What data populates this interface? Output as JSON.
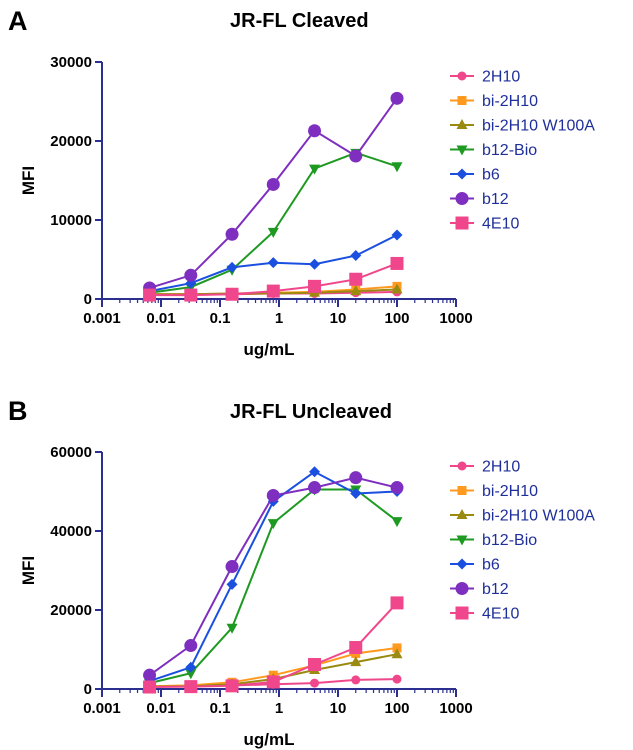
{
  "chart_data": [
    {
      "type": "line",
      "panel_label": "A",
      "title": "JR-FL Cleaved",
      "xlabel": "ug/mL",
      "ylabel": "MFI",
      "x_scale": "log",
      "xlim": [
        0.001,
        1000
      ],
      "ylim": [
        0,
        30000
      ],
      "x_ticks": [
        0.001,
        0.01,
        0.1,
        1,
        10,
        100,
        1000
      ],
      "x_tick_labels": [
        "0.001",
        "0.01",
        "0.1",
        "1",
        "10",
        "100",
        "1000"
      ],
      "y_ticks": [
        0,
        10000,
        20000,
        30000
      ],
      "y_tick_labels": [
        "0",
        "10000",
        "20000",
        "30000"
      ],
      "grid": false,
      "legend_position": "right",
      "x": [
        0.0064,
        0.032,
        0.16,
        0.8,
        4,
        20,
        100
      ],
      "series": [
        {
          "name": "2H10",
          "color": "#f0478c",
          "marker": "circle-small",
          "values": [
            600,
            600,
            600,
            700,
            700,
            800,
            900
          ]
        },
        {
          "name": "bi-2H10",
          "color": "#ff9a1f",
          "marker": "square-small",
          "values": [
            600,
            600,
            700,
            800,
            900,
            1200,
            1600
          ]
        },
        {
          "name": "bi-2H10 W100A",
          "color": "#9a8a10",
          "marker": "triangle-up",
          "values": [
            600,
            600,
            700,
            700,
            800,
            1000,
            1200
          ]
        },
        {
          "name": "b12-Bio",
          "color": "#1e9a22",
          "marker": "triangle-down",
          "values": [
            800,
            1500,
            3700,
            8500,
            16500,
            18500,
            16800
          ]
        },
        {
          "name": "b6",
          "color": "#1a4fe0",
          "marker": "diamond",
          "values": [
            1000,
            2000,
            4000,
            4600,
            4400,
            5500,
            8100
          ]
        },
        {
          "name": "b12",
          "color": "#7e2fbf",
          "marker": "circle-large",
          "values": [
            1400,
            3000,
            8200,
            14500,
            21300,
            18100,
            25400
          ]
        },
        {
          "name": "4E10",
          "color": "#f0478c",
          "marker": "square-large",
          "values": [
            500,
            500,
            600,
            1000,
            1600,
            2500,
            4500
          ]
        }
      ]
    },
    {
      "type": "line",
      "panel_label": "B",
      "title": "JR-FL Uncleaved",
      "xlabel": "ug/mL",
      "ylabel": "MFI",
      "x_scale": "log",
      "xlim": [
        0.001,
        1000
      ],
      "ylim": [
        0,
        60000
      ],
      "x_ticks": [
        0.001,
        0.01,
        0.1,
        1,
        10,
        100,
        1000
      ],
      "x_tick_labels": [
        "0.001",
        "0.01",
        "0.1",
        "1",
        "10",
        "100",
        "1000"
      ],
      "y_ticks": [
        0,
        20000,
        40000,
        60000
      ],
      "y_tick_labels": [
        "0",
        "20000",
        "40000",
        "60000"
      ],
      "grid": false,
      "legend_position": "right",
      "x": [
        0.0064,
        0.032,
        0.16,
        0.8,
        4,
        20,
        100
      ],
      "series": [
        {
          "name": "2H10",
          "color": "#f0478c",
          "marker": "circle-small",
          "values": [
            600,
            700,
            900,
            1200,
            1500,
            2300,
            2500
          ]
        },
        {
          "name": "bi-2H10",
          "color": "#ff9a1f",
          "marker": "square-small",
          "values": [
            700,
            900,
            1700,
            3500,
            6000,
            9000,
            10400
          ]
        },
        {
          "name": "bi-2H10 W100A",
          "color": "#9a8a10",
          "marker": "triangle-up",
          "values": [
            600,
            700,
            1200,
            2500,
            4800,
            6800,
            8800
          ]
        },
        {
          "name": "b12-Bio",
          "color": "#1e9a22",
          "marker": "triangle-down",
          "values": [
            1500,
            4000,
            15500,
            42000,
            50500,
            50500,
            42500
          ]
        },
        {
          "name": "b6",
          "color": "#1a4fe0",
          "marker": "diamond",
          "values": [
            2000,
            5500,
            26500,
            47500,
            55000,
            49500,
            50000
          ]
        },
        {
          "name": "b12",
          "color": "#7e2fbf",
          "marker": "circle-large",
          "values": [
            3500,
            11000,
            31000,
            49000,
            51000,
            53500,
            51000
          ]
        },
        {
          "name": "4E10",
          "color": "#f0478c",
          "marker": "square-large",
          "values": [
            500,
            600,
            800,
            1800,
            6200,
            10500,
            21800
          ]
        }
      ]
    }
  ]
}
